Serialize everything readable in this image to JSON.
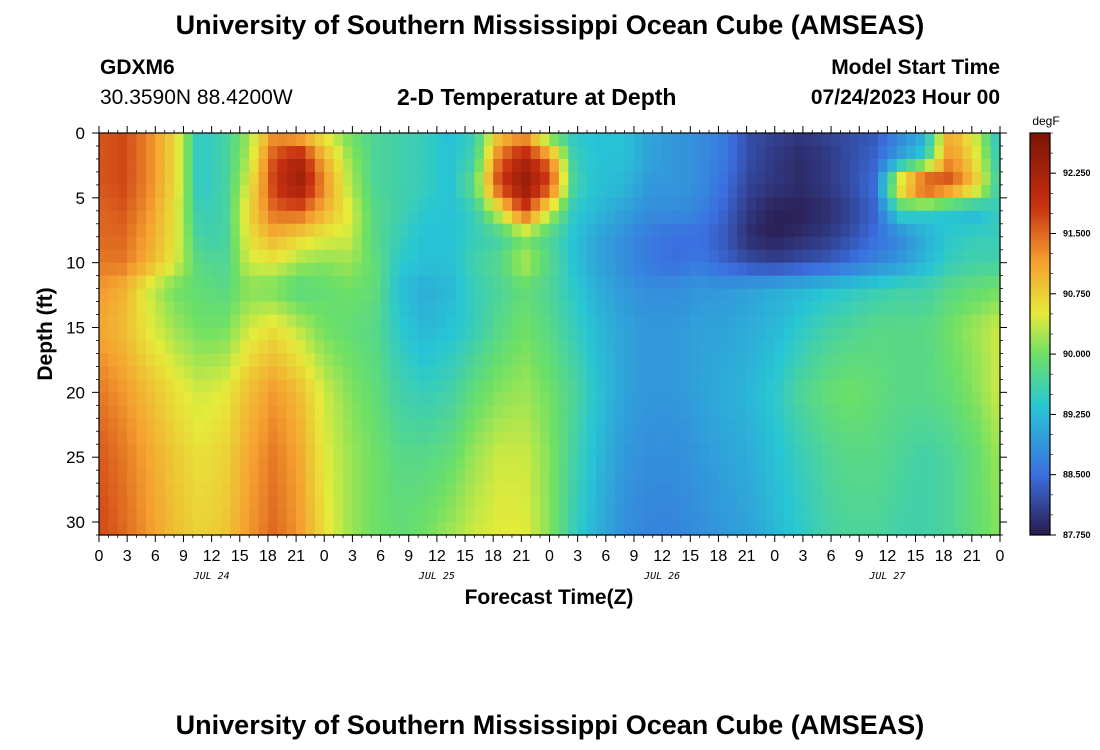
{
  "header": {
    "title": "University of Southern Mississippi Ocean Cube (AMSEAS)",
    "station": "GDXM6",
    "coords": "30.3590N  88.4200W",
    "plot_title": "2-D Temperature at Depth",
    "model_start_label": "Model Start Time",
    "model_start_value": "07/24/2023 Hour 00"
  },
  "footer": {
    "title": "University of Southern Mississippi Ocean Cube (AMSEAS)"
  },
  "colors": {
    "cold": "#2a1b4e",
    "blue": "#3b6fe0",
    "cyan": "#28c6d4",
    "green": "#6ee065",
    "yellow": "#e6eb3a",
    "orange": "#f5a030",
    "red": "#c72f10",
    "hot": "#7c1406"
  },
  "chart_data": {
    "type": "heatmap",
    "xlabel": "Forecast Time(Z)",
    "ylabel": "Depth (ft)",
    "colorbar_unit": "degF",
    "x_hours": [
      0,
      3,
      6,
      9,
      12,
      15,
      18,
      21,
      24,
      27,
      30,
      33,
      36,
      39,
      42,
      45,
      48,
      51,
      54,
      57,
      60,
      63,
      66,
      69,
      72,
      75,
      78,
      81,
      84,
      87,
      90,
      93,
      96
    ],
    "x_tick_labels": [
      "0",
      "3",
      "6",
      "9",
      "12",
      "15",
      "18",
      "21",
      "0",
      "3",
      "6",
      "9",
      "12",
      "15",
      "18",
      "21",
      "0",
      "3",
      "6",
      "9",
      "12",
      "15",
      "18",
      "21",
      "0",
      "3",
      "6",
      "9",
      "12",
      "15",
      "18",
      "21",
      "0"
    ],
    "day_labels": [
      {
        "label": "JUL 24",
        "hour": 12
      },
      {
        "label": "JUL 25",
        "hour": 36
      },
      {
        "label": "JUL 26",
        "hour": 60
      },
      {
        "label": "JUL 27",
        "hour": 84
      }
    ],
    "y_ticks": [
      0,
      5,
      10,
      15,
      20,
      25,
      30
    ],
    "y_range": [
      0,
      31
    ],
    "x_range": [
      0,
      96
    ],
    "depths": [
      0,
      2,
      4,
      6,
      8,
      10,
      12,
      15,
      20,
      25,
      31
    ],
    "colorbar_ticks": [
      92.25,
      91.5,
      90.75,
      90.0,
      89.25,
      88.5,
      87.75
    ],
    "colorbar_tick_labels": [
      "92.250",
      "91.500",
      "90.750",
      "90.000",
      "89.250",
      "88.500",
      "87.750"
    ],
    "color_range": [
      87.75,
      92.75
    ],
    "values": [
      [
        91.6,
        91.7,
        91.3,
        90.7,
        89.4,
        89.6,
        90.2,
        91.2,
        90.9,
        90.5,
        90.0,
        89.7,
        89.6,
        89.5,
        89.3,
        89.5,
        90.8,
        91.1,
        89.8,
        89.4,
        89.3,
        89.3,
        89.0,
        88.9,
        88.8,
        88.6,
        88.2,
        88.1,
        88.0,
        88.1,
        88.2,
        88.3,
        88.7,
        89.1,
        91.1,
        90.4,
        89.3
      ],
      [
        91.6,
        91.7,
        91.3,
        90.7,
        89.4,
        89.6,
        90.3,
        91.7,
        92.2,
        91.0,
        90.2,
        89.7,
        89.6,
        89.5,
        89.3,
        89.6,
        91.5,
        92.2,
        91.4,
        89.5,
        89.3,
        89.3,
        89.0,
        88.9,
        88.8,
        88.6,
        88.2,
        88.0,
        87.9,
        88.0,
        88.2,
        88.4,
        89.0,
        89.5,
        91.3,
        90.6,
        89.4
      ],
      [
        91.6,
        91.7,
        91.3,
        90.7,
        89.4,
        89.6,
        90.5,
        91.8,
        92.4,
        91.3,
        90.3,
        89.7,
        89.6,
        89.5,
        89.3,
        89.9,
        91.8,
        92.5,
        91.8,
        89.6,
        89.3,
        89.2,
        88.9,
        88.9,
        88.8,
        88.5,
        88.1,
        88.0,
        87.9,
        88.0,
        88.2,
        88.5,
        90.9,
        92.1,
        91.7,
        90.9,
        89.5
      ],
      [
        91.5,
        91.6,
        91.2,
        90.6,
        89.5,
        89.6,
        90.7,
        91.5,
        91.6,
        91.0,
        90.5,
        89.8,
        89.6,
        89.4,
        89.3,
        89.5,
        90.5,
        91.8,
        90.4,
        89.4,
        89.2,
        89.0,
        88.8,
        88.8,
        88.7,
        88.4,
        88.0,
        87.8,
        87.8,
        87.9,
        88.1,
        88.4,
        89.6,
        89.5,
        89.3,
        89.2,
        89.5
      ],
      [
        91.5,
        91.5,
        91.1,
        90.6,
        89.6,
        89.6,
        90.6,
        91.0,
        90.7,
        90.5,
        90.4,
        89.8,
        89.5,
        89.3,
        89.3,
        89.5,
        89.6,
        90.0,
        89.7,
        89.3,
        89.0,
        88.8,
        88.6,
        88.5,
        88.5,
        88.3,
        87.9,
        87.8,
        87.9,
        88.0,
        88.2,
        88.5,
        88.7,
        89.1,
        89.4,
        89.5,
        89.5
      ],
      [
        91.4,
        91.4,
        91.0,
        90.5,
        89.8,
        89.7,
        90.4,
        90.5,
        90.2,
        90.1,
        90.2,
        89.9,
        89.4,
        89.3,
        89.3,
        89.6,
        89.8,
        90.3,
        89.8,
        89.3,
        89.0,
        88.8,
        88.6,
        88.5,
        88.6,
        88.4,
        88.2,
        88.1,
        88.2,
        88.3,
        88.5,
        88.7,
        88.9,
        89.2,
        89.5,
        89.6,
        89.6
      ],
      [
        91.2,
        91.0,
        90.4,
        90.0,
        89.9,
        89.8,
        90.1,
        90.0,
        89.8,
        89.9,
        90.0,
        89.9,
        89.3,
        89.1,
        89.2,
        89.5,
        89.7,
        89.9,
        89.7,
        89.4,
        89.1,
        88.9,
        88.8,
        88.8,
        88.9,
        88.9,
        89.0,
        89.1,
        89.2,
        89.3,
        89.4,
        89.5,
        89.6,
        89.6,
        89.8,
        89.9,
        90.0
      ],
      [
        91.1,
        90.9,
        90.5,
        90.2,
        90.0,
        90.0,
        90.4,
        90.6,
        90.3,
        90.0,
        89.9,
        89.8,
        89.4,
        89.2,
        89.3,
        89.5,
        89.8,
        90.0,
        89.8,
        89.5,
        89.2,
        89.0,
        88.9,
        88.9,
        89.0,
        89.0,
        89.1,
        89.2,
        89.4,
        89.6,
        89.7,
        89.8,
        89.8,
        89.8,
        90.0,
        90.2,
        90.4
      ],
      [
        91.4,
        91.2,
        90.9,
        90.6,
        90.4,
        90.5,
        90.9,
        91.2,
        90.9,
        90.4,
        90.1,
        89.9,
        89.6,
        89.5,
        89.6,
        89.9,
        90.1,
        90.2,
        90.0,
        89.7,
        89.3,
        89.0,
        88.9,
        88.9,
        89.0,
        89.1,
        89.2,
        89.4,
        89.7,
        89.9,
        90.0,
        89.9,
        89.8,
        89.8,
        89.9,
        90.1,
        90.4
      ],
      [
        91.6,
        91.4,
        91.1,
        90.8,
        90.6,
        90.7,
        91.1,
        91.4,
        91.1,
        90.5,
        90.2,
        90.0,
        89.8,
        89.8,
        89.9,
        90.2,
        90.4,
        90.4,
        90.1,
        89.6,
        89.2,
        88.9,
        88.8,
        88.8,
        88.9,
        89.0,
        89.1,
        89.3,
        89.5,
        89.7,
        89.8,
        89.8,
        89.7,
        89.6,
        89.7,
        89.9,
        90.2
      ],
      [
        91.7,
        91.5,
        91.2,
        90.9,
        90.7,
        90.8,
        91.2,
        91.5,
        91.2,
        90.6,
        90.2,
        90.0,
        89.9,
        90.0,
        90.2,
        90.4,
        90.5,
        90.5,
        90.1,
        89.5,
        89.1,
        88.8,
        88.7,
        88.7,
        88.8,
        88.9,
        89.0,
        89.2,
        89.4,
        89.6,
        89.7,
        89.7,
        89.6,
        89.6,
        89.7,
        89.9,
        90.1
      ]
    ]
  }
}
